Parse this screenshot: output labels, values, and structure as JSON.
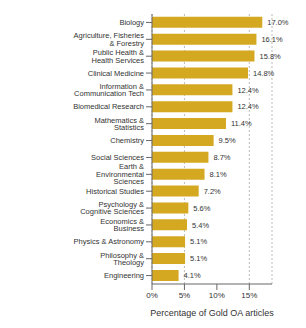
{
  "chart_data": {
    "type": "bar",
    "orientation": "horizontal",
    "categories": [
      "Engineering",
      "Philosophy & Theology",
      "Physics & Astronomy",
      "Economics & Business",
      "Psychology & Cognitive Sciences",
      "Historical Studies",
      "Earth & Environmental Sciences",
      "Social Sciences",
      "Chemistry",
      "Mathematics & Statistics",
      "Biomedical Research",
      "Information & Communication Tech",
      "Clinical Medicine",
      "Public Health & Health Services",
      "Agriculture, Fisheries & Forestry",
      "Biology"
    ],
    "values": [
      4.1,
      5.1,
      5.1,
      5.4,
      5.6,
      7.2,
      8.1,
      8.7,
      9.5,
      11.4,
      12.4,
      12.4,
      14.8,
      15.8,
      16.1,
      17.0
    ],
    "value_labels": [
      "4.1%",
      "5.1%",
      "5.1%",
      "5.4%",
      "5.6%",
      "7.2%",
      "8.1%",
      "8.7%",
      "9.5%",
      "11.4%",
      "12.4%",
      "12.4%",
      "14.8%",
      "15.8%",
      "16.1%",
      "17.0%"
    ],
    "data_labels": true,
    "color": "#D4A820",
    "xlabel": "Percentage of Gold OA articles",
    "xlim": [
      0,
      18.5
    ],
    "xticks": [
      {
        "value": 0,
        "label": "0%"
      },
      {
        "value": 5,
        "label": "5%"
      },
      {
        "value": 10,
        "label": "10%"
      },
      {
        "value": 15,
        "label": "15%"
      }
    ],
    "grid": true
  }
}
